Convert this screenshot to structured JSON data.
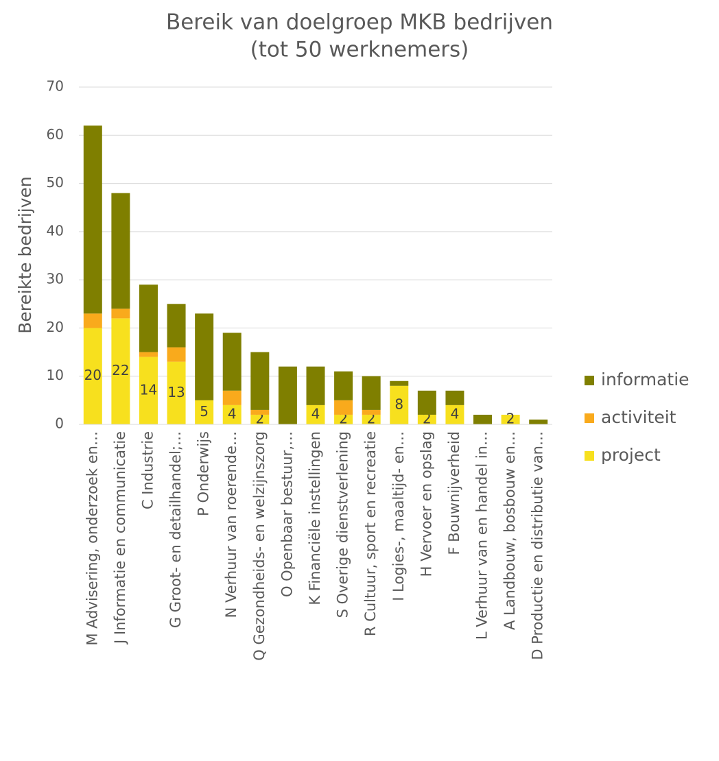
{
  "chart_data": {
    "type": "stacked_bar",
    "title": [
      "Bereik van doelgroep MKB bedrijven",
      "(tot 50 werknemers)"
    ],
    "y_label": "Bereikte bedrijven",
    "categories": [
      "M Advisering, onderzoek en…",
      "J Informatie en communicatie",
      "C Industrie",
      "G Groot- en detailhandel;…",
      "P Onderwijs",
      "N Verhuur van roerende…",
      "Q Gezondheids- en welzijnszorg",
      "O Openbaar bestuur,…",
      "K Financiële instellingen",
      "S Overige dienstverlening",
      "R Cultuur, sport en recreatie",
      "I Logies-, maaltijd- en…",
      "H Vervoer en opslag",
      "F Bouwnijverheid",
      "L Verhuur van en handel in…",
      "A Landbouw, bosbouw en…",
      "D Productie en distributie van…"
    ],
    "series": [
      {
        "name": "project",
        "color": "#f7e01e",
        "values": [
          20,
          22,
          14,
          13,
          5,
          4,
          2,
          0,
          4,
          2,
          2,
          8,
          2,
          4,
          0,
          2,
          0
        ],
        "data_labels": true
      },
      {
        "name": "activiteit",
        "color": "#f9aa1c",
        "values": [
          3,
          2,
          1,
          3,
          0,
          3,
          1,
          0,
          0,
          3,
          1,
          0,
          0,
          0,
          0,
          0,
          0
        ]
      },
      {
        "name": "informatie",
        "color": "#7f7f00",
        "values": [
          39,
          24,
          14,
          9,
          18,
          12,
          12,
          12,
          8,
          6,
          7,
          1,
          5,
          3,
          2,
          0,
          1
        ]
      }
    ],
    "ylim": [
      0,
      70
    ],
    "yticks": [
      0,
      10,
      20,
      30,
      40,
      50,
      60,
      70
    ],
    "grid": true,
    "legend": "right"
  }
}
